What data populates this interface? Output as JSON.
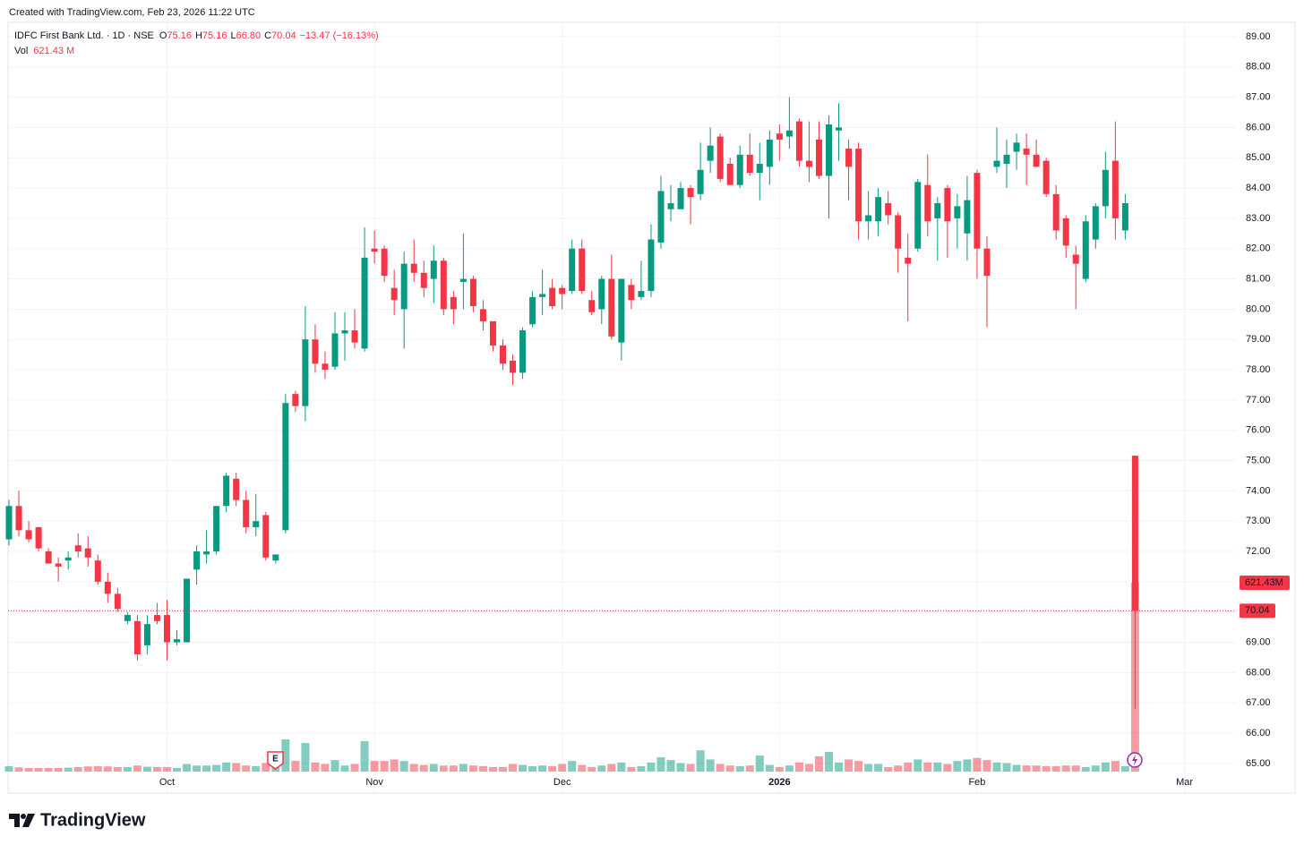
{
  "header": "Created with TradingView.com, Feb 23, 2026 11:22 UTC",
  "footer": "TradingView",
  "earnings_marker": "E",
  "chart_data": {
    "type": "candlestick",
    "title": "IDFC First Bank Ltd. · 1D · NSE",
    "legend": {
      "o_key": "O",
      "o": "75.16",
      "h_key": "H",
      "h": "75.16",
      "l_key": "L",
      "l": "66.80",
      "c_key": "C",
      "c": "70.04",
      "change": "−13.47 (−16.13%)",
      "vol_key": "Vol",
      "vol": "621.43 M"
    },
    "categories": [
      null,
      null,
      null,
      null,
      null,
      null,
      null,
      null,
      null,
      null,
      null,
      null,
      null,
      null,
      null,
      null,
      "Oct",
      null,
      null,
      null,
      null,
      null,
      null,
      null,
      null,
      null,
      null,
      null,
      null,
      null,
      null,
      null,
      null,
      null,
      null,
      null,
      null,
      "Nov",
      null,
      null,
      null,
      null,
      null,
      null,
      null,
      null,
      null,
      null,
      null,
      null,
      null,
      null,
      null,
      null,
      null,
      null,
      "Dec",
      null,
      null,
      null,
      null,
      null,
      null,
      null,
      null,
      null,
      null,
      null,
      null,
      null,
      null,
      null,
      null,
      null,
      null,
      null,
      null,
      null,
      "2026",
      null,
      null,
      null,
      null,
      null,
      null,
      null,
      null,
      null,
      null,
      null,
      null,
      null,
      null,
      null,
      null,
      null,
      null,
      null,
      "Feb",
      null,
      null,
      null,
      null,
      null,
      null,
      null,
      null,
      null,
      null,
      null,
      null,
      null,
      null,
      null,
      null,
      null,
      null,
      null,
      null,
      "Mar"
    ],
    "open": [
      72.4,
      73.5,
      72.7,
      72.8,
      72.0,
      71.6,
      71.7,
      72.2,
      72.1,
      71.7,
      71.0,
      70.6,
      69.7,
      69.7,
      68.9,
      69.9,
      69.9,
      69.0,
      69.0,
      71.4,
      71.9,
      72.0,
      73.5,
      74.4,
      73.7,
      72.8,
      73.2,
      71.7,
      72.7,
      77.2,
      76.8,
      79.0,
      78.2,
      78.1,
      79.2,
      79.3,
      78.7,
      82.0,
      82.0,
      80.7,
      80.0,
      81.5,
      81.2,
      81.0,
      81.6,
      80.4,
      80.9,
      81.0,
      80.0,
      79.6,
      78.8,
      78.3,
      77.9,
      79.5,
      80.4,
      80.7,
      80.7,
      80.6,
      82.0,
      80.3,
      80.0,
      81.0,
      78.9,
      80.8,
      80.4,
      80.6,
      82.2,
      83.3,
      83.3,
      84.0,
      83.8,
      84.9,
      85.7,
      84.8,
      84.1,
      85.1,
      84.5,
      84.7,
      85.8,
      85.7,
      86.2,
      84.9,
      85.6,
      84.4,
      85.9,
      85.3,
      85.3,
      82.9,
      82.9,
      83.5,
      83.1,
      81.7,
      82.0,
      84.1,
      83.0,
      84.0,
      83.0,
      82.5,
      84.5,
      82.0,
      84.7,
      84.8,
      85.2,
      85.3,
      85.1,
      84.9,
      83.8,
      83.0,
      81.8,
      81.0,
      82.3,
      83.4,
      84.9,
      82.6,
      75.16,
      null,
      null,
      null,
      null,
      null
    ],
    "high": [
      73.7,
      74.0,
      73.0,
      72.8,
      72.1,
      71.8,
      72.0,
      72.6,
      72.5,
      71.9,
      71.3,
      70.8,
      70.0,
      69.9,
      69.9,
      70.3,
      70.4,
      69.4,
      71.1,
      72.2,
      72.7,
      73.5,
      74.6,
      74.6,
      74.0,
      73.9,
      73.3,
      71.9,
      77.2,
      77.3,
      80.1,
      79.5,
      78.6,
      79.9,
      79.9,
      80.0,
      82.7,
      82.6,
      82.1,
      81.3,
      81.9,
      82.3,
      81.6,
      82.1,
      81.7,
      80.6,
      82.5,
      81.1,
      80.3,
      79.6,
      79.0,
      78.5,
      79.4,
      80.6,
      81.3,
      81.0,
      80.8,
      82.3,
      82.3,
      80.6,
      81.1,
      81.8,
      81.0,
      81.0,
      81.6,
      82.8,
      84.4,
      84.1,
      84.2,
      84.1,
      85.5,
      86.0,
      85.8,
      85.0,
      85.4,
      85.8,
      85.5,
      85.9,
      86.1,
      87.0,
      86.3,
      86.2,
      86.2,
      86.4,
      86.8,
      85.6,
      85.5,
      83.9,
      84.0,
      83.9,
      83.2,
      82.5,
      84.3,
      85.1,
      83.7,
      84.1,
      83.8,
      84.4,
      84.6,
      82.4,
      86.0,
      85.6,
      85.8,
      85.8,
      85.6,
      85.0,
      84.1,
      83.1,
      82.1,
      83.1,
      83.5,
      85.2,
      86.2,
      83.8,
      75.16,
      null,
      null,
      null,
      null,
      null
    ],
    "low": [
      72.2,
      72.5,
      72.3,
      72.0,
      71.6,
      71.0,
      71.4,
      71.8,
      71.5,
      70.9,
      70.3,
      70.0,
      69.6,
      68.4,
      68.6,
      69.6,
      68.4,
      68.9,
      69.0,
      70.9,
      71.6,
      71.9,
      73.3,
      73.5,
      72.6,
      72.5,
      71.7,
      71.6,
      72.6,
      76.6,
      76.3,
      77.9,
      77.7,
      78.0,
      78.3,
      78.7,
      78.6,
      81.5,
      80.9,
      79.8,
      78.7,
      80.9,
      80.4,
      80.2,
      79.8,
      79.5,
      80.0,
      79.9,
      79.3,
      78.6,
      78.0,
      77.5,
      77.7,
      79.4,
      79.8,
      80.0,
      80.0,
      80.5,
      80.5,
      79.8,
      79.5,
      79.0,
      78.3,
      80.0,
      80.3,
      80.4,
      82.0,
      82.9,
      83.3,
      82.8,
      83.6,
      84.5,
      84.2,
      84.1,
      84.0,
      84.4,
      83.6,
      84.1,
      84.9,
      85.3,
      84.7,
      84.2,
      84.3,
      83.0,
      84.9,
      83.6,
      82.3,
      82.3,
      82.4,
      82.8,
      81.2,
      79.6,
      81.9,
      82.4,
      81.6,
      81.7,
      82.0,
      81.6,
      81.0,
      79.4,
      84.5,
      84.0,
      84.6,
      84.1,
      84.7,
      83.7,
      82.3,
      81.7,
      80.0,
      80.9,
      82.0,
      83.0,
      82.3,
      82.3,
      66.8,
      null,
      null,
      null,
      null,
      null
    ],
    "close": [
      73.5,
      72.7,
      72.4,
      72.1,
      71.6,
      71.5,
      71.8,
      72.0,
      71.8,
      71.0,
      70.6,
      70.1,
      69.9,
      68.6,
      69.6,
      69.7,
      69.0,
      69.1,
      71.1,
      72.0,
      72.0,
      73.5,
      74.5,
      73.7,
      72.8,
      73.0,
      71.8,
      71.9,
      76.9,
      76.8,
      79.0,
      78.2,
      78.0,
      79.2,
      79.3,
      78.9,
      81.7,
      81.9,
      81.1,
      80.3,
      81.5,
      81.2,
      80.7,
      81.6,
      80.0,
      80.0,
      81.0,
      80.1,
      79.6,
      78.8,
      78.2,
      77.9,
      79.3,
      80.4,
      80.5,
      80.1,
      80.5,
      82.0,
      80.6,
      79.9,
      81.0,
      79.1,
      81.0,
      80.3,
      80.6,
      82.3,
      83.9,
      83.5,
      84.0,
      83.7,
      84.6,
      85.4,
      84.3,
      84.1,
      85.1,
      84.5,
      84.8,
      85.6,
      85.6,
      85.9,
      84.9,
      84.7,
      84.4,
      86.1,
      86.0,
      84.7,
      82.9,
      83.1,
      83.7,
      83.1,
      82.0,
      81.5,
      84.2,
      82.9,
      83.5,
      82.9,
      83.4,
      83.6,
      82.0,
      81.1,
      84.9,
      85.1,
      85.5,
      85.1,
      84.7,
      83.8,
      82.6,
      82.1,
      81.5,
      82.9,
      83.4,
      84.6,
      83.0,
      83.5,
      70.04,
      null,
      null,
      null,
      null,
      null
    ],
    "up_color": "#089981",
    "down_color": "#f23645",
    "volume": {
      "values": [
        18,
        14,
        12,
        12,
        12,
        12,
        13,
        15,
        17,
        18,
        17,
        15,
        15,
        20,
        16,
        15,
        15,
        12,
        25,
        20,
        20,
        22,
        30,
        28,
        20,
        18,
        28,
        20,
        106,
        35,
        94,
        30,
        25,
        38,
        20,
        25,
        100,
        35,
        35,
        40,
        35,
        25,
        22,
        25,
        20,
        20,
        25,
        20,
        18,
        15,
        15,
        25,
        22,
        18,
        20,
        18,
        25,
        35,
        22,
        15,
        20,
        25,
        30,
        15,
        18,
        30,
        47,
        38,
        28,
        25,
        70,
        40,
        25,
        20,
        18,
        20,
        53,
        22,
        15,
        20,
        30,
        25,
        50,
        65,
        30,
        40,
        35,
        25,
        25,
        15,
        20,
        30,
        40,
        30,
        30,
        25,
        35,
        40,
        45,
        38,
        30,
        28,
        22,
        20,
        20,
        18,
        18,
        20,
        20,
        15,
        20,
        30,
        35,
        18,
        621.43,
        null,
        null,
        null,
        null,
        null
      ],
      "label": "621.43M",
      "ylim": [
        0,
        2465
      ]
    },
    "ylim": [
      64.02,
      89.47
    ],
    "yticks": [
      {
        "value": 65,
        "label": "65.00"
      },
      {
        "value": 66,
        "label": "66.00"
      },
      {
        "value": 67,
        "label": "67.00"
      },
      {
        "value": 68,
        "label": "68.00"
      },
      {
        "value": 69,
        "label": "69.00"
      },
      {
        "value": 70,
        "label": "70.00"
      },
      {
        "value": 71,
        "label": "71.00"
      },
      {
        "value": 72,
        "label": "72.00"
      },
      {
        "value": 73,
        "label": "73.00"
      },
      {
        "value": 74,
        "label": "74.00"
      },
      {
        "value": 75,
        "label": "75.00"
      },
      {
        "value": 76,
        "label": "76.00"
      },
      {
        "value": 77,
        "label": "77.00"
      },
      {
        "value": 78,
        "label": "78.00"
      },
      {
        "value": 79,
        "label": "79.00"
      },
      {
        "value": 80,
        "label": "80.00"
      },
      {
        "value": 81,
        "label": "81.00"
      },
      {
        "value": 82,
        "label": "82.00"
      },
      {
        "value": 83,
        "label": "83.00"
      },
      {
        "value": 84,
        "label": "84.00"
      },
      {
        "value": 85,
        "label": "85.00"
      },
      {
        "value": 86,
        "label": "86.00"
      },
      {
        "value": 87,
        "label": "87.00"
      },
      {
        "value": 88,
        "label": "88.00"
      },
      {
        "value": 89,
        "label": "89.00"
      }
    ],
    "grid": true
  }
}
